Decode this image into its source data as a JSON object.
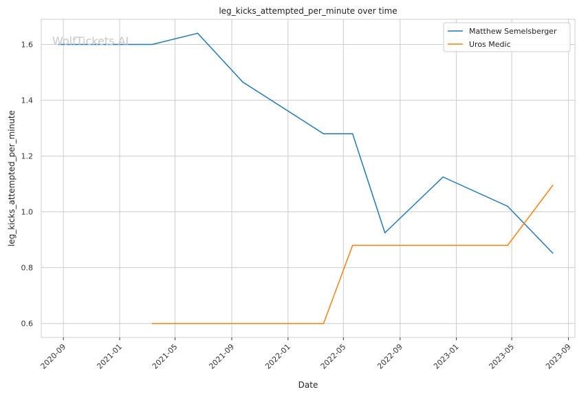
{
  "chart_data": {
    "type": "line",
    "title": "leg_kicks_attempted_per_minute over time",
    "xlabel": "Date",
    "ylabel": "leg_kicks_attempted_per_minute",
    "watermark": "WolfTickets AI",
    "xlim": [
      "2020-07-15",
      "2023-09-15"
    ],
    "ylim": [
      0.55,
      1.69
    ],
    "x_ticks": [
      "2020-09",
      "2021-01",
      "2021-05",
      "2021-09",
      "2022-01",
      "2022-05",
      "2022-09",
      "2023-01",
      "2023-05",
      "2023-09"
    ],
    "y_ticks": [
      "0.6",
      "0.8",
      "1.0",
      "1.2",
      "1.4",
      "1.6"
    ],
    "grid": true,
    "legend_position": "top-right",
    "colors": {
      "Matthew Semelsberger": "#1f77b4",
      "Uros Medic": "#ff7f0e",
      "grid": "#cccccc",
      "axes": "#cccccc"
    },
    "series": [
      {
        "name": "Matthew Semelsberger",
        "color": "#1f77b4",
        "points": [
          {
            "x": "2020-08-22",
            "y": 1.6
          },
          {
            "x": "2021-03-13",
            "y": 1.6
          },
          {
            "x": "2021-06-19",
            "y": 1.64
          },
          {
            "x": "2021-09-25",
            "y": 1.465
          },
          {
            "x": "2022-03-19",
            "y": 1.28
          },
          {
            "x": "2022-05-21",
            "y": 1.28
          },
          {
            "x": "2022-07-30",
            "y": 0.925
          },
          {
            "x": "2022-12-03",
            "y": 1.125
          },
          {
            "x": "2023-04-22",
            "y": 1.02
          },
          {
            "x": "2023-07-29",
            "y": 0.852
          }
        ]
      },
      {
        "name": "Uros Medic",
        "color": "#ff7f0e",
        "points": [
          {
            "x": "2021-03-13",
            "y": 0.6
          },
          {
            "x": "2022-03-19",
            "y": 0.6
          },
          {
            "x": "2022-05-21",
            "y": 0.88
          },
          {
            "x": "2023-04-22",
            "y": 0.88
          },
          {
            "x": "2023-07-29",
            "y": 1.095
          }
        ]
      }
    ]
  }
}
